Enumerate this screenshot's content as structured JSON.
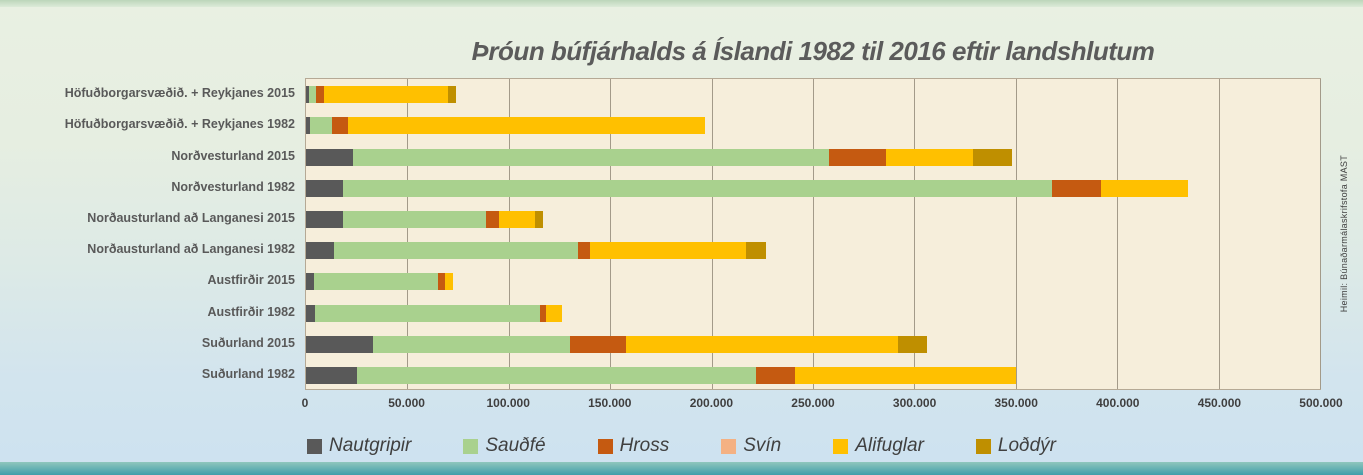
{
  "title": "Þróun búfjárhalds á Íslandi 1982 til 2016 eftir landshlutum",
  "source_note": "Heimil: Búnaðarmálaskrifstofa MAST",
  "chart_data": {
    "type": "bar",
    "orientation": "horizontal",
    "stacked": true,
    "title": "Þróun búfjárhalds á Íslandi 1982 til 2016 eftir landshlutum",
    "grid": "vertical",
    "legend_position": "bottom",
    "xlim": [
      0,
      500000
    ],
    "x_tick_step": 50000,
    "x_ticks": [
      "0",
      "50.000",
      "100.000",
      "150.000",
      "200.000",
      "250.000",
      "300.000",
      "350.000",
      "400.000",
      "450.000",
      "500.000"
    ],
    "categories": [
      "Höfuðborgarsvæðið. + Reykjanes 2015",
      "Höfuðborgarsvæðið. + Reykjanes 1982",
      "Norðvesturland 2015",
      "Norðvesturland 1982",
      "Norðausturland að Langanesi 2015",
      "Norðausturland að Langanesi 1982",
      "Austfirðir 2015",
      "Austfirðir 1982",
      "Suðurland 2015",
      "Suðurland 1982"
    ],
    "series": [
      {
        "name": "Nautgripir",
        "color": "#595959",
        "values": [
          1500,
          2000,
          23000,
          18000,
          18000,
          14000,
          4000,
          4500,
          33000,
          25000
        ]
      },
      {
        "name": "Sauðfé",
        "color": "#a9d18e",
        "values": [
          3500,
          11000,
          235000,
          350000,
          71000,
          120000,
          61000,
          111000,
          97000,
          197000
        ]
      },
      {
        "name": "Hross",
        "color": "#c55a11",
        "values": [
          4000,
          7500,
          28000,
          24000,
          6000,
          6000,
          3500,
          3000,
          28000,
          19000
        ]
      },
      {
        "name": "Svín",
        "color": "#f4b183",
        "values": [
          0,
          0,
          0,
          0,
          0,
          0,
          0,
          0,
          0,
          0
        ]
      },
      {
        "name": "Alifuglar",
        "color": "#ffc000",
        "values": [
          61000,
          176500,
          43000,
          43000,
          18000,
          77000,
          4000,
          7500,
          134000,
          109000
        ]
      },
      {
        "name": "Loðdýr",
        "color": "#bf8f00",
        "values": [
          4000,
          0,
          19000,
          0,
          4000,
          10000,
          0,
          0,
          14000,
          0
        ]
      }
    ]
  },
  "colors": {
    "plot_background": "#f6eedb",
    "gridline": "#a39a89",
    "title_text": "#5b5b5b",
    "axis_text": "#3f3f3f",
    "page_top": "#e9f0e2",
    "page_bottom": "#cde2f0",
    "bottom_strip": "#3f9daa"
  }
}
